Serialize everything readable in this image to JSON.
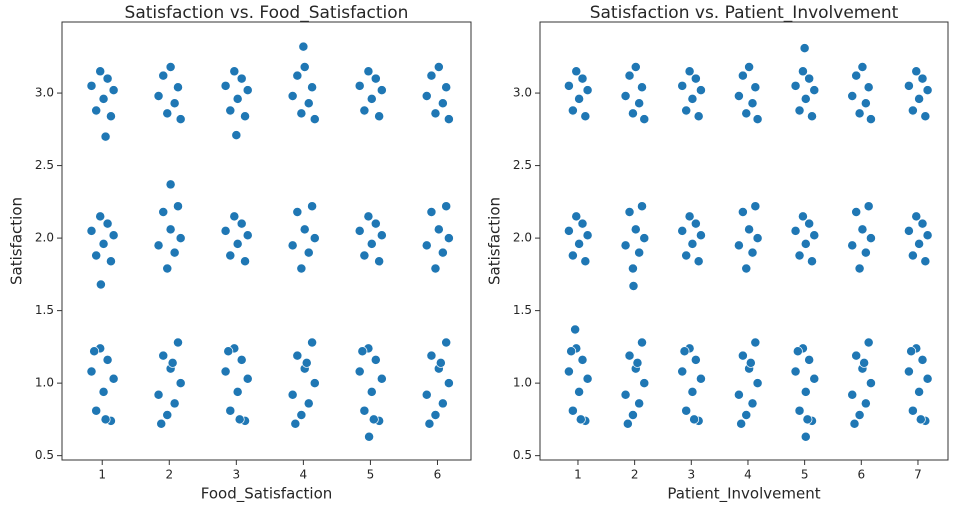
{
  "chart_data": [
    {
      "type": "scatter",
      "title": "Satisfaction vs. Food_Satisfaction",
      "xlabel": "Food_Satisfaction",
      "ylabel": "Satisfaction",
      "color": "#1f77b4",
      "xlim": [
        0.4,
        6.5
      ],
      "ylim": [
        0.47,
        3.49
      ],
      "xticks": [
        1,
        2,
        3,
        4,
        5,
        6
      ],
      "yticks": [
        0.5,
        {
          "value": 1.0,
          "label": "1.0"
        },
        1.5,
        {
          "value": 2.0,
          "label": "2.0"
        },
        2.5,
        {
          "value": 3.0,
          "label": "3.0"
        }
      ],
      "x": [
        0.84,
        0.91,
        0.97,
        1.02,
        1.08,
        1.13,
        1.17,
        0.84,
        0.91,
        0.97,
        1.02,
        1.08,
        1.13,
        1.17,
        0.84,
        0.91,
        0.97,
        1.02,
        1.08,
        1.13,
        1.17,
        0.88,
        1.05,
        1.84,
        1.91,
        1.97,
        2.02,
        2.08,
        2.13,
        2.17,
        1.84,
        1.91,
        1.97,
        2.02,
        2.08,
        2.13,
        2.17,
        1.84,
        1.91,
        1.97,
        2.02,
        2.08,
        2.13,
        2.17,
        1.88,
        2.05,
        2.84,
        2.91,
        2.97,
        3.02,
        3.08,
        3.13,
        3.17,
        2.84,
        2.91,
        2.97,
        3.02,
        3.08,
        3.13,
        3.17,
        2.84,
        2.91,
        2.97,
        3.02,
        3.08,
        3.13,
        3.17,
        2.88,
        3.05,
        3.84,
        3.91,
        3.97,
        4.02,
        4.08,
        4.13,
        4.17,
        3.84,
        3.91,
        3.97,
        4.02,
        4.08,
        4.13,
        4.17,
        3.84,
        3.91,
        3.97,
        4.02,
        4.08,
        4.13,
        4.17,
        3.88,
        4.05,
        4.84,
        4.91,
        4.97,
        5.02,
        5.08,
        5.13,
        5.17,
        4.84,
        4.91,
        4.97,
        5.02,
        5.08,
        5.13,
        5.17,
        4.84,
        4.91,
        4.97,
        5.02,
        5.08,
        5.13,
        5.17,
        4.88,
        5.05,
        5.84,
        5.91,
        5.97,
        6.02,
        6.08,
        6.13,
        6.17,
        5.84,
        5.91,
        5.97,
        6.02,
        6.08,
        6.13,
        6.17,
        5.84,
        5.91,
        5.97,
        6.02,
        6.08,
        6.13,
        6.17,
        5.88,
        6.05,
        1.05,
        2.02,
        3.0,
        4.0,
        4.98,
        0.98
      ],
      "y": [
        3.05,
        2.88,
        3.15,
        2.96,
        3.1,
        2.84,
        3.02,
        2.05,
        1.88,
        2.15,
        1.96,
        2.1,
        1.84,
        2.02,
        1.08,
        0.81,
        1.24,
        0.94,
        1.16,
        0.74,
        1.03,
        1.22,
        0.75,
        2.98,
        3.12,
        2.86,
        3.18,
        2.93,
        3.04,
        2.82,
        1.95,
        2.18,
        1.79,
        2.06,
        1.9,
        2.22,
        2,
        0.92,
        1.19,
        0.78,
        1.1,
        0.86,
        1.28,
        1,
        0.72,
        1.14,
        3.05,
        2.88,
        3.15,
        2.96,
        3.1,
        2.84,
        3.02,
        2.05,
        1.88,
        2.15,
        1.96,
        2.1,
        1.84,
        2.02,
        1.08,
        0.81,
        1.24,
        0.94,
        1.16,
        0.74,
        1.03,
        1.22,
        0.75,
        2.98,
        3.12,
        2.86,
        3.18,
        2.93,
        3.04,
        2.82,
        1.95,
        2.18,
        1.79,
        2.06,
        1.9,
        2.22,
        2,
        0.92,
        1.19,
        0.78,
        1.1,
        0.86,
        1.28,
        1,
        0.72,
        1.14,
        3.05,
        2.88,
        3.15,
        2.96,
        3.1,
        2.84,
        3.02,
        2.05,
        1.88,
        2.15,
        1.96,
        2.1,
        1.84,
        2.02,
        1.08,
        0.81,
        1.24,
        0.94,
        1.16,
        0.74,
        1.03,
        1.22,
        0.75,
        2.98,
        3.12,
        2.86,
        3.18,
        2.93,
        3.04,
        2.82,
        1.95,
        2.18,
        1.79,
        2.06,
        1.9,
        2.22,
        2,
        0.92,
        1.19,
        0.78,
        1.1,
        0.86,
        1.28,
        1,
        0.72,
        1.14,
        2.7,
        2.37,
        2.71,
        3.32,
        0.63,
        1.68
      ]
    },
    {
      "type": "scatter",
      "title": "Satisfaction vs. Patient_Involvement",
      "xlabel": "Patient_Involvement",
      "ylabel": "Satisfaction",
      "color": "#1f77b4",
      "xlim": [
        0.33,
        7.53
      ],
      "ylim": [
        0.47,
        3.49
      ],
      "xticks": [
        1,
        2,
        3,
        4,
        5,
        6,
        7
      ],
      "yticks": [
        0.5,
        {
          "value": 1.0,
          "label": "1.0"
        },
        1.5,
        {
          "value": 2.0,
          "label": "2.0"
        },
        2.5,
        {
          "value": 3.0,
          "label": "3.0"
        }
      ],
      "x": [
        0.84,
        0.91,
        0.97,
        1.02,
        1.08,
        1.13,
        1.17,
        0.84,
        0.91,
        0.97,
        1.02,
        1.08,
        1.13,
        1.17,
        0.84,
        0.91,
        0.97,
        1.02,
        1.08,
        1.13,
        1.17,
        0.88,
        1.05,
        1.84,
        1.91,
        1.97,
        2.02,
        2.08,
        2.13,
        2.17,
        1.84,
        1.91,
        1.97,
        2.02,
        2.08,
        2.13,
        2.17,
        1.84,
        1.91,
        1.97,
        2.02,
        2.08,
        2.13,
        2.17,
        1.88,
        2.05,
        2.84,
        2.91,
        2.97,
        3.02,
        3.08,
        3.13,
        3.17,
        2.84,
        2.91,
        2.97,
        3.02,
        3.08,
        3.13,
        3.17,
        2.84,
        2.91,
        2.97,
        3.02,
        3.08,
        3.13,
        3.17,
        2.88,
        3.05,
        3.84,
        3.91,
        3.97,
        4.02,
        4.08,
        4.13,
        4.17,
        3.84,
        3.91,
        3.97,
        4.02,
        4.08,
        4.13,
        4.17,
        3.84,
        3.91,
        3.97,
        4.02,
        4.08,
        4.13,
        4.17,
        3.88,
        4.05,
        4.84,
        4.91,
        4.97,
        5.02,
        5.08,
        5.13,
        5.17,
        4.84,
        4.91,
        4.97,
        5.02,
        5.08,
        5.13,
        5.17,
        4.84,
        4.91,
        4.97,
        5.02,
        5.08,
        5.13,
        5.17,
        4.88,
        5.05,
        5.84,
        5.91,
        5.97,
        6.02,
        6.08,
        6.13,
        6.17,
        5.84,
        5.91,
        5.97,
        6.02,
        6.08,
        6.13,
        6.17,
        5.84,
        5.91,
        5.97,
        6.02,
        6.08,
        6.13,
        6.17,
        5.88,
        6.05,
        6.84,
        6.91,
        6.97,
        7.02,
        7.08,
        7.13,
        7.17,
        6.84,
        6.91,
        6.97,
        7.02,
        7.08,
        7.13,
        7.17,
        6.84,
        6.91,
        6.97,
        7.02,
        7.08,
        7.13,
        7.17,
        6.88,
        7.05,
        5.0,
        5.02,
        1.98,
        0.95
      ],
      "y": [
        3.05,
        2.88,
        3.15,
        2.96,
        3.1,
        2.84,
        3.02,
        2.05,
        1.88,
        2.15,
        1.96,
        2.1,
        1.84,
        2.02,
        1.08,
        0.81,
        1.24,
        0.94,
        1.16,
        0.74,
        1.03,
        1.22,
        0.75,
        2.98,
        3.12,
        2.86,
        3.18,
        2.93,
        3.04,
        2.82,
        1.95,
        2.18,
        1.79,
        2.06,
        1.9,
        2.22,
        2,
        0.92,
        1.19,
        0.78,
        1.1,
        0.86,
        1.28,
        1,
        0.72,
        1.14,
        3.05,
        2.88,
        3.15,
        2.96,
        3.1,
        2.84,
        3.02,
        2.05,
        1.88,
        2.15,
        1.96,
        2.1,
        1.84,
        2.02,
        1.08,
        0.81,
        1.24,
        0.94,
        1.16,
        0.74,
        1.03,
        1.22,
        0.75,
        2.98,
        3.12,
        2.86,
        3.18,
        2.93,
        3.04,
        2.82,
        1.95,
        2.18,
        1.79,
        2.06,
        1.9,
        2.22,
        2,
        0.92,
        1.19,
        0.78,
        1.1,
        0.86,
        1.28,
        1,
        0.72,
        1.14,
        3.05,
        2.88,
        3.15,
        2.96,
        3.1,
        2.84,
        3.02,
        2.05,
        1.88,
        2.15,
        1.96,
        2.1,
        1.84,
        2.02,
        1.08,
        0.81,
        1.24,
        0.94,
        1.16,
        0.74,
        1.03,
        1.22,
        0.75,
        2.98,
        3.12,
        2.86,
        3.18,
        2.93,
        3.04,
        2.82,
        1.95,
        2.18,
        1.79,
        2.06,
        1.9,
        2.22,
        2,
        0.92,
        1.19,
        0.78,
        1.1,
        0.86,
        1.28,
        1,
        0.72,
        1.14,
        3.05,
        2.88,
        3.15,
        2.96,
        3.1,
        2.84,
        3.02,
        2.05,
        1.88,
        2.15,
        1.96,
        2.1,
        1.84,
        2.02,
        1.08,
        0.81,
        1.24,
        0.94,
        1.16,
        0.74,
        1.03,
        1.22,
        0.75,
        3.31,
        0.63,
        1.67,
        1.37
      ]
    }
  ]
}
